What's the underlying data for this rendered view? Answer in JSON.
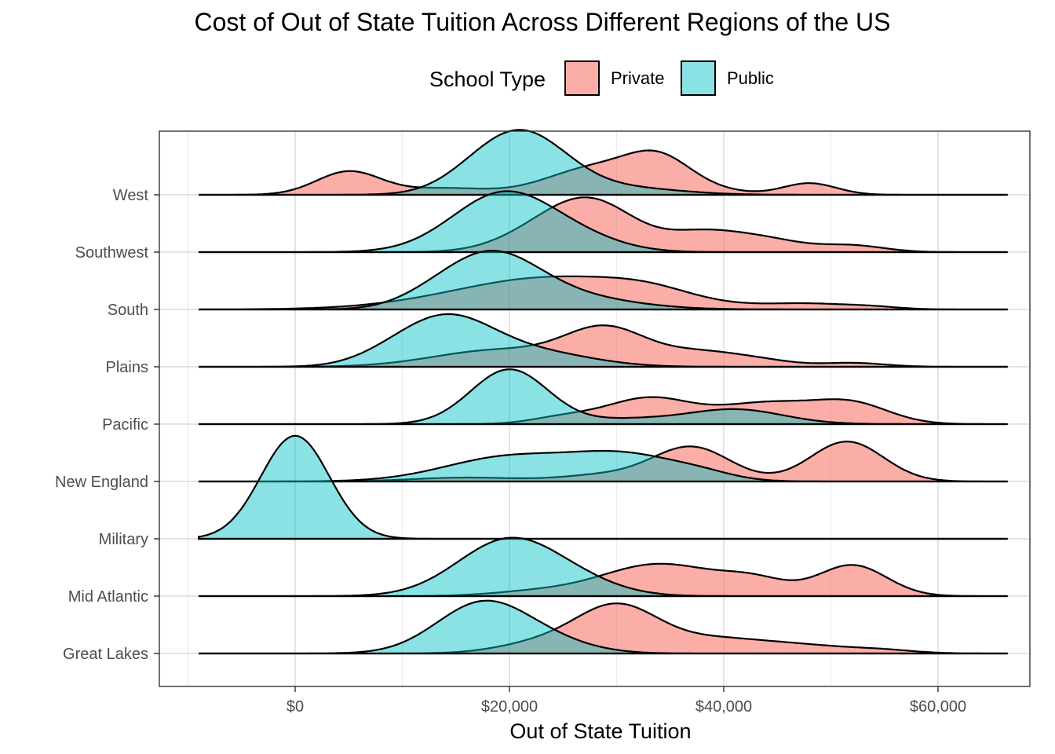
{
  "chart_data": {
    "type": "ridgeline",
    "title": "Cost of Out of State Tuition Across Different Regions of the US",
    "xlabel": "Out of State Tuition",
    "ylabel": "",
    "xlim": [
      -10000,
      68000
    ],
    "x_ticks": [
      0,
      20000,
      40000,
      60000
    ],
    "x_tick_labels": [
      "$0",
      "$20,000",
      "$40,000",
      "$60,000"
    ],
    "grid": true,
    "legend": {
      "title": "School Type",
      "position": "top",
      "entries": [
        {
          "label": "Private",
          "color": "#F8766D"
        },
        {
          "label": "Public",
          "color": "#00BFC4"
        }
      ]
    },
    "categories": [
      "West",
      "Southwest",
      "South",
      "Plains",
      "Pacific",
      "New England",
      "Military",
      "Mid Atlantic",
      "Great Lakes"
    ],
    "series": [
      {
        "name": "Private",
        "color": "#F8766D",
        "ridges": {
          "West": [
            [
              5000,
              0.36,
              3000
            ],
            [
              14000,
              0.1,
              4000
            ],
            [
              28000,
              0.42,
              4500
            ],
            [
              34000,
              0.48,
              3000
            ],
            [
              48000,
              0.18,
              2500
            ],
            [
              39000,
              0.06,
              3000
            ]
          ],
          "Southwest": [
            [
              28000,
              0.7,
              4000
            ],
            [
              23000,
              0.28,
              4000
            ],
            [
              38000,
              0.28,
              3500
            ],
            [
              44000,
              0.18,
              3500
            ],
            [
              52000,
              0.1,
              3000
            ]
          ],
          "South": [
            [
              24000,
              0.5,
              9000
            ],
            [
              33000,
              0.12,
              4000
            ],
            [
              48000,
              0.08,
              4000
            ],
            [
              54000,
              0.03,
              2500
            ]
          ],
          "Plains": [
            [
              19000,
              0.26,
              6000
            ],
            [
              29000,
              0.56,
              3800
            ],
            [
              38000,
              0.22,
              4000
            ],
            [
              52000,
              0.06,
              3000
            ],
            [
              44000,
              0.06,
              3000
            ]
          ],
          "Pacific": [
            [
              33000,
              0.4,
              4000
            ],
            [
              44000,
              0.32,
              4500
            ],
            [
              52000,
              0.3,
              3500
            ],
            [
              25000,
              0.1,
              3000
            ]
          ],
          "New England": [
            [
              37000,
              0.53,
              3600
            ],
            [
              51500,
              0.62,
              3400
            ],
            [
              29000,
              0.1,
              4000
            ],
            [
              16000,
              0.06,
              5000
            ]
          ],
          "Military": [],
          "Mid Atlantic": [
            [
              34000,
              0.5,
              5500
            ],
            [
              52000,
              0.48,
              3200
            ],
            [
              43000,
              0.2,
              3000
            ],
            [
              22000,
              0.06,
              4000
            ]
          ],
          "Great Lakes": [
            [
              30000,
              0.7,
              3800
            ],
            [
              23000,
              0.16,
              4000
            ],
            [
              39000,
              0.22,
              5000
            ],
            [
              48000,
              0.1,
              4500
            ],
            [
              55000,
              0.04,
              3000
            ]
          ]
        }
      },
      {
        "name": "Public",
        "color": "#00BFC4",
        "ridges": {
          "West": [
            [
              21000,
              0.98,
              4300
            ],
            [
              31000,
              0.1,
              5000
            ],
            [
              16000,
              0.06,
              3000
            ]
          ],
          "Southwest": [
            [
              19500,
              0.92,
              4800
            ],
            [
              27000,
              0.14,
              4000
            ]
          ],
          "South": [
            [
              18000,
              0.8,
              4500
            ],
            [
              25000,
              0.2,
              6000
            ],
            [
              12000,
              0.06,
              3000
            ]
          ],
          "Plains": [
            [
              14000,
              0.77,
              4500
            ],
            [
              23000,
              0.2,
              5000
            ],
            [
              8000,
              0.05,
              3000
            ]
          ],
          "Pacific": [
            [
              20000,
              0.85,
              3600
            ],
            [
              41000,
              0.23,
              4500
            ],
            [
              31000,
              0.07,
              4000
            ]
          ],
          "New England": [
            [
              20000,
              0.38,
              6000
            ],
            [
              31000,
              0.38,
              5000
            ],
            [
              38000,
              0.08,
              3000
            ]
          ],
          "Military": [
            [
              0,
              1.6,
              3200
            ]
          ],
          "Mid Atlantic": [
            [
              20000,
              0.88,
              4800
            ],
            [
              27000,
              0.12,
              4000
            ]
          ],
          "Great Lakes": [
            [
              17500,
              0.78,
              4300
            ],
            [
              24000,
              0.14,
              4000
            ]
          ]
        }
      }
    ]
  }
}
